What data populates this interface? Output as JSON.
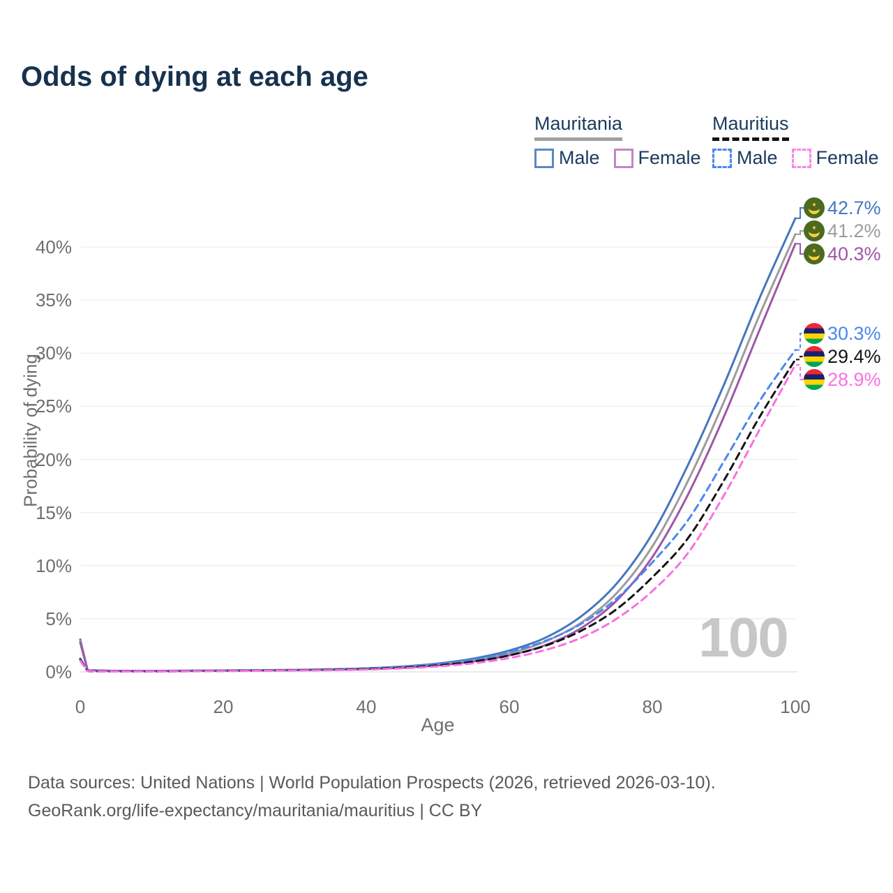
{
  "title": "Odds of dying at each age",
  "watermark": "100",
  "legend": {
    "groups": [
      {
        "country": "Mauritania",
        "items": [
          {
            "label": "Male"
          },
          {
            "label": "Female"
          }
        ]
      },
      {
        "country": "Mauritius",
        "items": [
          {
            "label": "Male"
          },
          {
            "label": "Female"
          }
        ]
      }
    ]
  },
  "footer": {
    "line1": "Data sources: United Nations | World Population Prospects (2026, retrieved 2026-03-10).",
    "line2": "GeoRank.org/life-expectancy/mauritania/mauritius | CC BY"
  },
  "colors": {
    "title_text": "#16324e",
    "legend_text": "#1c3a5e",
    "axis_text": "#6e6e6e",
    "grid": "#ececec",
    "zero_line": "#dddddd",
    "watermark": "#c7c7c7",
    "legend_underline_mauritania": "#a0a0a0",
    "legend_underline_mauritius": "#141414",
    "legend_male_solid": "#5e87c5",
    "legend_female_solid": "#c287c5",
    "legend_male_dashed": "#4c87ef",
    "legend_female_dashed": "#fa86e8",
    "flag_mauritania_green": "#4c6b1f",
    "flag_mauritania_yellow": "#ffcf3f",
    "flag_mauritius_red": "#ea2839",
    "flag_mauritius_blue": "#1a206d",
    "flag_mauritius_yellow": "#ffd500",
    "flag_mauritius_green": "#00a551"
  },
  "chart_data": {
    "type": "line",
    "title": "Odds of dying at each age",
    "xlabel": "Age",
    "ylabel": "Probability of dying",
    "xlim": [
      0,
      100
    ],
    "ylim": [
      0,
      44
    ],
    "grid": "horizontal",
    "legend_position": "top-right",
    "x_ticks": [
      {
        "v": 0,
        "label": "0"
      },
      {
        "v": 20,
        "label": "20"
      },
      {
        "v": 40,
        "label": "40"
      },
      {
        "v": 60,
        "label": "60"
      },
      {
        "v": 80,
        "label": "80"
      },
      {
        "v": 100,
        "label": "100"
      }
    ],
    "y_ticks": [
      {
        "v": 0,
        "label": "0%"
      },
      {
        "v": 5,
        "label": "5%"
      },
      {
        "v": 10,
        "label": "10%"
      },
      {
        "v": 15,
        "label": "15%"
      },
      {
        "v": 20,
        "label": "20%"
      },
      {
        "v": 25,
        "label": "25%"
      },
      {
        "v": 30,
        "label": "30%"
      },
      {
        "v": 35,
        "label": "35%"
      },
      {
        "v": 40,
        "label": "40%"
      }
    ],
    "ages": [
      0,
      1,
      2,
      5,
      10,
      15,
      20,
      25,
      30,
      35,
      40,
      45,
      50,
      55,
      60,
      65,
      70,
      75,
      80,
      85,
      90,
      95,
      100
    ],
    "series": [
      {
        "name": "Mauritania Male",
        "country": "Mauritania",
        "sex": "Male",
        "style": "solid",
        "color": "#4577bd",
        "flag": "mauritania",
        "end_label": "42.7%",
        "values": [
          3.05,
          0.25,
          0.15,
          0.1,
          0.09,
          0.11,
          0.14,
          0.16,
          0.19,
          0.24,
          0.33,
          0.5,
          0.78,
          1.25,
          2.0,
          3.2,
          5.2,
          8.3,
          13.0,
          19.5,
          27.0,
          35.2,
          42.7
        ]
      },
      {
        "name": "Mauritania Both sexes",
        "country": "Mauritania",
        "sex": "Both sexes",
        "style": "solid",
        "color": "#9c9c9c",
        "flag": "mauritania",
        "end_label": "41.2%",
        "values": [
          2.9,
          0.23,
          0.14,
          0.09,
          0.08,
          0.1,
          0.13,
          0.15,
          0.17,
          0.21,
          0.29,
          0.44,
          0.68,
          1.1,
          1.75,
          2.85,
          4.6,
          7.4,
          11.8,
          18.0,
          25.4,
          33.6,
          41.2
        ]
      },
      {
        "name": "Mauritania Female",
        "country": "Mauritania",
        "sex": "Female",
        "style": "solid",
        "color": "#9e57a6",
        "flag": "mauritania",
        "end_label": "40.3%",
        "values": [
          2.75,
          0.21,
          0.13,
          0.08,
          0.07,
          0.09,
          0.11,
          0.13,
          0.16,
          0.19,
          0.26,
          0.39,
          0.6,
          0.97,
          1.55,
          2.5,
          4.1,
          6.7,
          10.8,
          16.7,
          24.0,
          32.2,
          40.3
        ]
      },
      {
        "name": "Mauritius Male",
        "country": "Mauritius",
        "sex": "Male",
        "style": "dashed",
        "color": "#4c87ef",
        "flag": "mauritius",
        "end_label": "30.3%",
        "values": [
          1.25,
          0.1,
          0.06,
          0.04,
          0.05,
          0.07,
          0.11,
          0.14,
          0.17,
          0.22,
          0.3,
          0.46,
          0.72,
          1.15,
          1.85,
          2.9,
          4.5,
          6.9,
          10.3,
          14.3,
          19.8,
          25.5,
          30.3
        ]
      },
      {
        "name": "Mauritius Both sexes",
        "country": "Mauritius",
        "sex": "Both sexes",
        "style": "dashed",
        "color": "#141414",
        "flag": "mauritius",
        "end_label": "29.4%",
        "values": [
          1.15,
          0.09,
          0.05,
          0.04,
          0.04,
          0.06,
          0.09,
          0.12,
          0.15,
          0.19,
          0.26,
          0.39,
          0.61,
          0.97,
          1.55,
          2.45,
          3.85,
          5.9,
          8.9,
          12.6,
          18.0,
          24.0,
          29.4
        ]
      },
      {
        "name": "Mauritius Female",
        "country": "Mauritius",
        "sex": "Female",
        "style": "dashed",
        "color": "#fa70e2",
        "flag": "mauritius",
        "end_label": "28.9%",
        "values": [
          1.05,
          0.08,
          0.05,
          0.03,
          0.04,
          0.05,
          0.08,
          0.1,
          0.13,
          0.16,
          0.22,
          0.33,
          0.51,
          0.81,
          1.3,
          2.05,
          3.2,
          5.0,
          7.6,
          11.2,
          16.6,
          22.8,
          28.9
        ]
      }
    ]
  }
}
